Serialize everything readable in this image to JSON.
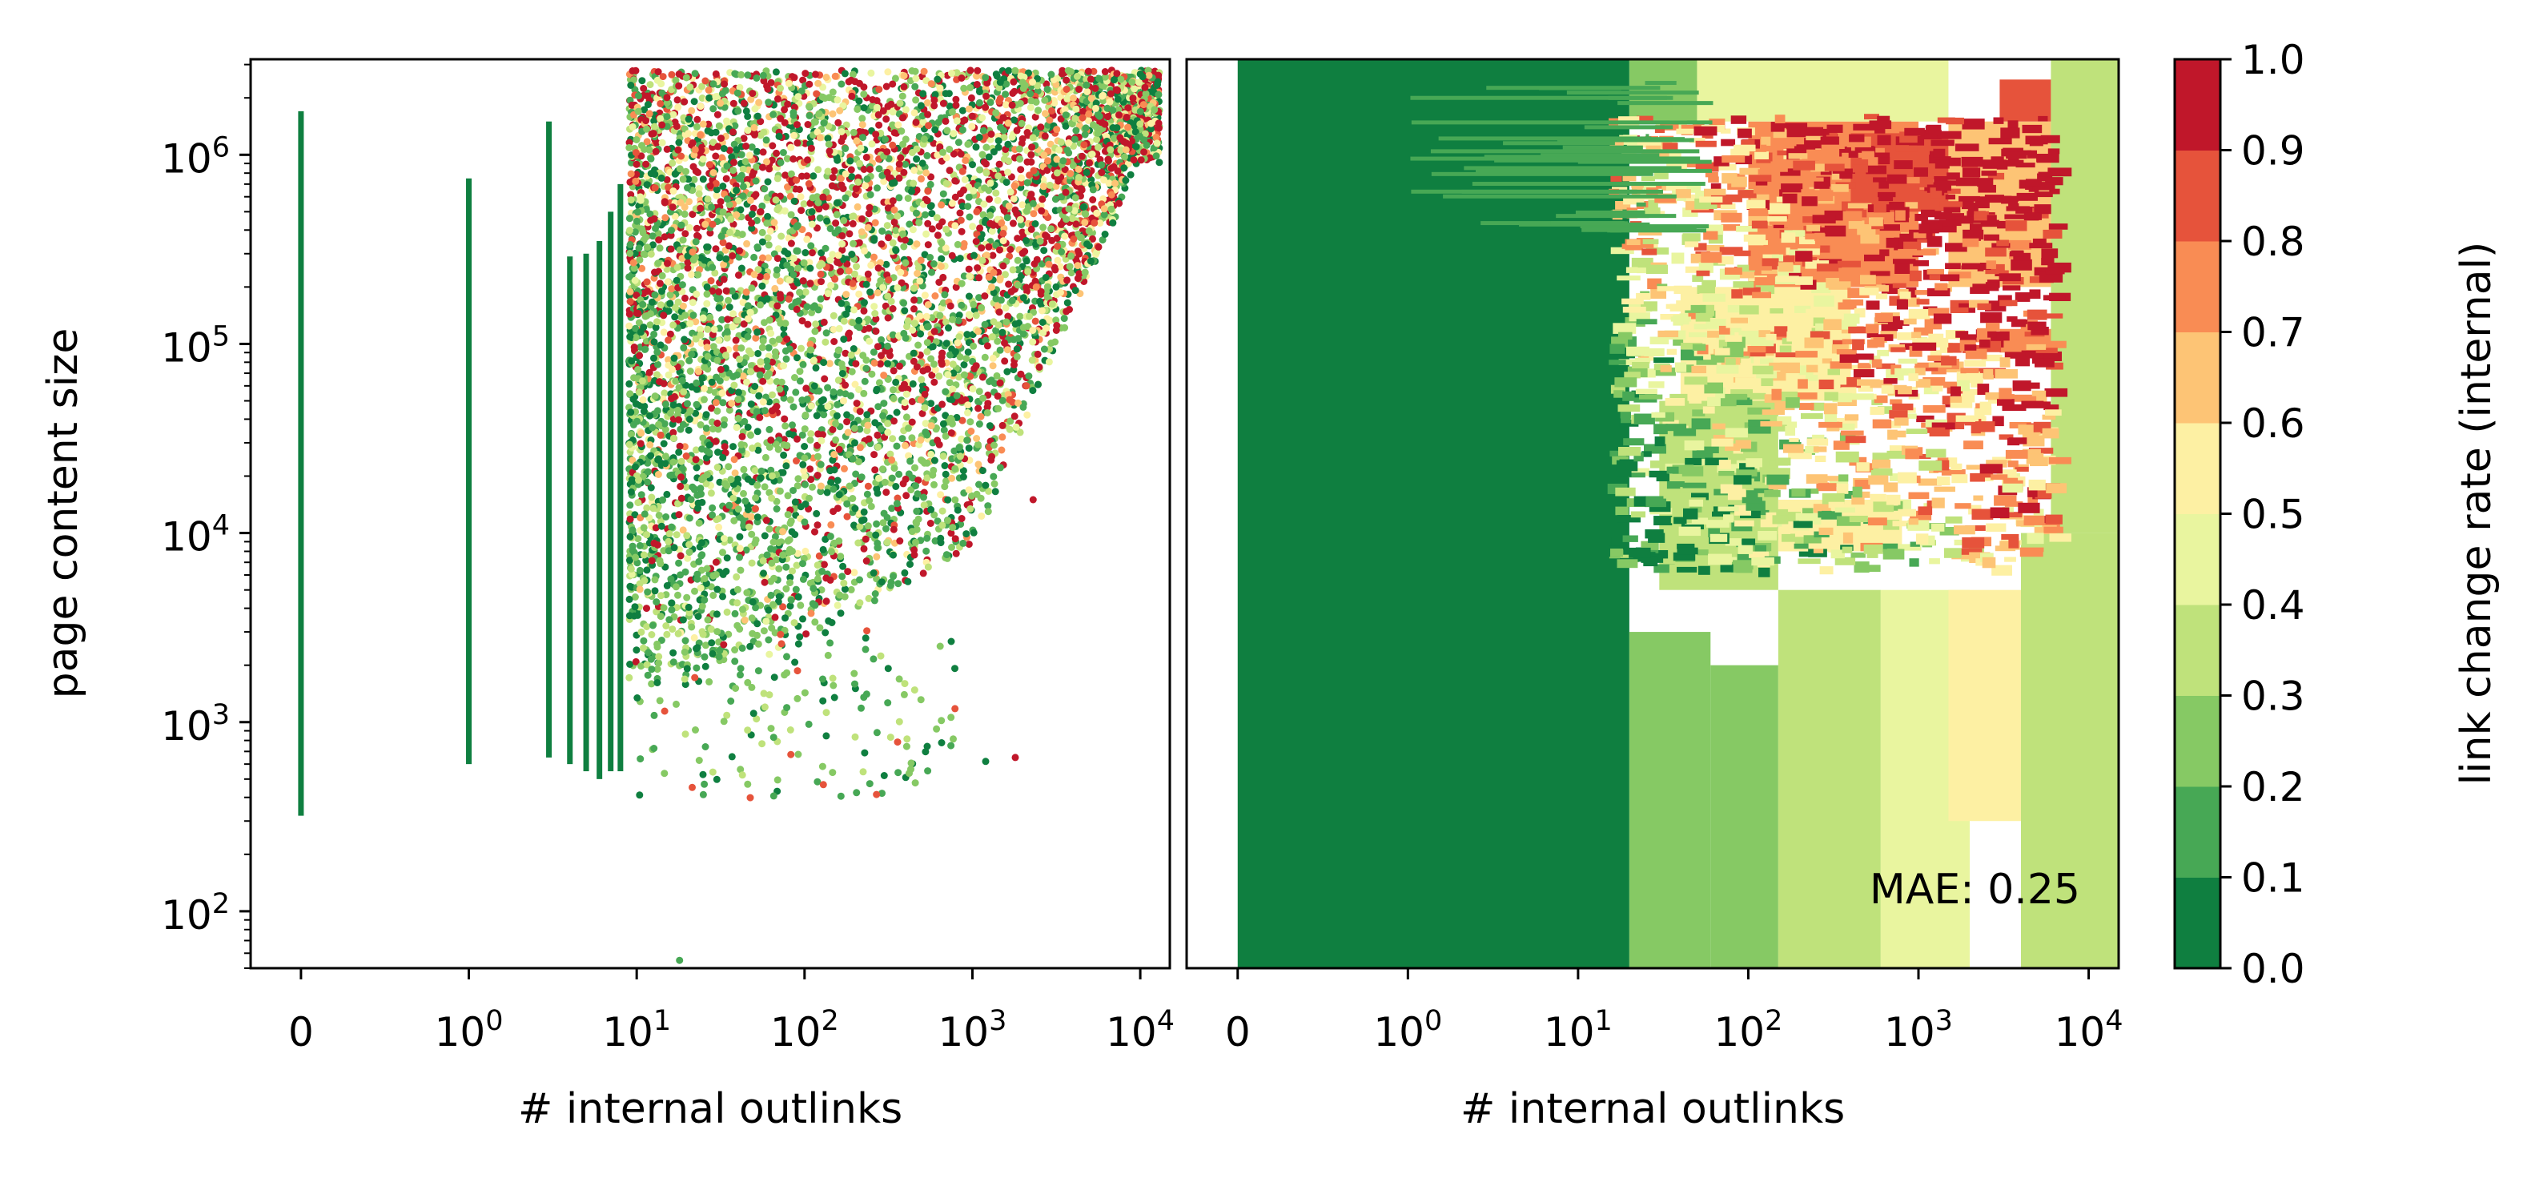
{
  "chart_data": [
    {
      "type": "scatter",
      "title": "",
      "xlabel": "# internal outlinks",
      "ylabel": "page content size",
      "xscale": "symlog",
      "yscale": "log",
      "xlim": [
        -0.3,
        15000
      ],
      "ylim": [
        50,
        3200000
      ],
      "x_ticks": [
        {
          "value": 0,
          "base": "0",
          "exp": ""
        },
        {
          "value": 1,
          "base": "10",
          "exp": "0"
        },
        {
          "value": 10,
          "base": "10",
          "exp": "1"
        },
        {
          "value": 100,
          "base": "10",
          "exp": "2"
        },
        {
          "value": 1000,
          "base": "10",
          "exp": "3"
        },
        {
          "value": 10000,
          "base": "10",
          "exp": "4"
        }
      ],
      "y_ticks": [
        {
          "value": 100,
          "base": "10",
          "exp": "2"
        },
        {
          "value": 1000,
          "base": "10",
          "exp": "3"
        },
        {
          "value": 10000,
          "base": "10",
          "exp": "4"
        },
        {
          "value": 100000,
          "base": "10",
          "exp": "5"
        },
        {
          "value": 1000000,
          "base": "10",
          "exp": "6"
        }
      ],
      "color_variable": "link change rate (internal)",
      "dense_columns": [
        {
          "x": 0,
          "y_range": [
            320,
            1700000
          ]
        },
        {
          "x": 1,
          "y_range": [
            600,
            750000
          ]
        },
        {
          "x": 3,
          "y_range": [
            650,
            1500000
          ]
        },
        {
          "x": 4,
          "y_range": [
            600,
            290000
          ]
        },
        {
          "x": 5,
          "y_range": [
            550,
            300000
          ]
        },
        {
          "x": 6,
          "y_range": [
            500,
            350000
          ]
        },
        {
          "x": 7,
          "y_range": [
            550,
            500000
          ]
        },
        {
          "x": 8,
          "y_range": [
            550,
            700000
          ]
        }
      ],
      "cloud_summary": {
        "x_range": [
          9,
          13000
        ],
        "y_range": [
          350,
          2800000
        ],
        "low_rate_lower_edge": [
          [
            10,
            1500
          ],
          [
            100,
            2500
          ],
          [
            1000,
            8000
          ],
          [
            2500,
            60000
          ],
          [
            10000,
            900000
          ]
        ]
      },
      "outliers": [
        {
          "x": 18,
          "y": 55,
          "rate": 0.1
        },
        {
          "x": 1800,
          "y": 650,
          "rate": 0.95
        },
        {
          "x": 1200,
          "y": 620,
          "rate": 0.05
        },
        {
          "x": 2300,
          "y": 15000,
          "rate": 0.95
        },
        {
          "x": 2100,
          "y": 60000,
          "rate": 0.8
        },
        {
          "x": 2400,
          "y": 200000,
          "rate": 0.7
        }
      ]
    },
    {
      "type": "heatmap",
      "title": "",
      "subtype": "filled contour",
      "xlabel": "# internal outlinks",
      "ylabel": "",
      "xscale": "symlog",
      "yscale": "log",
      "xlim": [
        -0.3,
        15000
      ],
      "ylim": [
        50,
        3200000
      ],
      "x_ticks": [
        {
          "value": 0,
          "base": "0",
          "exp": ""
        },
        {
          "value": 1,
          "base": "10",
          "exp": "0"
        },
        {
          "value": 10,
          "base": "10",
          "exp": "1"
        },
        {
          "value": 100,
          "base": "10",
          "exp": "2"
        },
        {
          "value": 1000,
          "base": "10",
          "exp": "3"
        },
        {
          "value": 10000,
          "base": "10",
          "exp": "4"
        }
      ],
      "annotation": "MAE: 0.25",
      "contour_levels": [
        0.0,
        0.1,
        0.2,
        0.3,
        0.4,
        0.5,
        0.6,
        0.7,
        0.8,
        0.9,
        1.0
      ],
      "regions": [
        {
          "x_range": [
            0,
            20
          ],
          "y_range": [
            50,
            3200000
          ],
          "rate": 0.05
        },
        {
          "x_range": [
            20,
            60
          ],
          "y_range": [
            50,
            3000
          ],
          "rate": 0.25
        },
        {
          "x_range": [
            60,
            150
          ],
          "y_range": [
            50,
            2000
          ],
          "rate": 0.2
        },
        {
          "x_range": [
            150,
            600
          ],
          "y_range": [
            50,
            5000
          ],
          "rate": 0.35
        },
        {
          "x_range": [
            600,
            2000
          ],
          "y_range": [
            50,
            5000
          ],
          "rate": 0.45
        },
        {
          "x_range": [
            1500,
            4000
          ],
          "y_range": [
            300,
            5000
          ],
          "rate": 0.55
        },
        {
          "x_range": [
            4000,
            15000
          ],
          "y_range": [
            50,
            10000
          ],
          "rate": 0.3
        },
        {
          "x_range": [
            30,
            150
          ],
          "y_range": [
            5000,
            50000
          ],
          "rate": 0.35
        },
        {
          "x_range": [
            150,
            800
          ],
          "y_range": [
            8000,
            15000
          ],
          "rate": 0.5
        },
        {
          "x_range": [
            40,
            400
          ],
          "y_range": [
            50000,
            200000
          ],
          "rate": 0.55
        },
        {
          "x_range": [
            100,
            1000
          ],
          "y_range": [
            200000,
            1500000
          ],
          "rate": 0.75
        },
        {
          "x_range": [
            400,
            1500
          ],
          "y_range": [
            500000,
            1300000
          ],
          "rate": 0.85
        },
        {
          "x_range": [
            1500,
            6000
          ],
          "y_range": [
            200000,
            1500000
          ],
          "rate": 0.6
        },
        {
          "x_range": [
            3000,
            7000
          ],
          "y_range": [
            90000,
            120000
          ],
          "rate": 0.75
        },
        {
          "x_range": [
            3000,
            6000
          ],
          "y_range": [
            1500000,
            2500000
          ],
          "rate": 0.8
        },
        {
          "x_range": [
            20,
            50
          ],
          "y_range": [
            1500000,
            3200000
          ],
          "rate": 0.2
        },
        {
          "x_range": [
            50,
            1500
          ],
          "y_range": [
            1500000,
            3200000
          ],
          "rate": 0.45
        },
        {
          "x_range": [
            6000,
            15000
          ],
          "y_range": [
            10000,
            3200000
          ],
          "rate": 0.3
        }
      ]
    }
  ],
  "colorbar": {
    "label": "link change rate (internal)",
    "colors": [
      "#0f7f40",
      "#47a855",
      "#86c964",
      "#bfe27b",
      "#e9f59f",
      "#fdf0a3",
      "#fdc475",
      "#f98c54",
      "#e6533b",
      "#c0172a"
    ],
    "ticks": [
      "0.0",
      "0.1",
      "0.2",
      "0.3",
      "0.4",
      "0.5",
      "0.6",
      "0.7",
      "0.8",
      "0.9",
      "1.0"
    ]
  }
}
